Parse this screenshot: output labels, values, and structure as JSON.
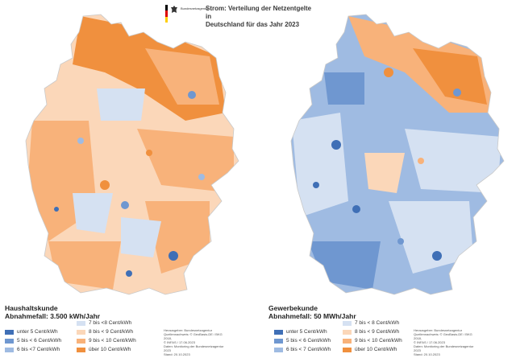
{
  "header": {
    "agency": "Bundesnetzagentur",
    "title_line1": "Strom: Verteilung der Netzentgelte in",
    "title_line2": "Deutschland für das Jahr 2023",
    "flag_colors": [
      "#000000",
      "#dd0000",
      "#ffce00"
    ]
  },
  "left_panel": {
    "title_line1": "Haushaltskunde",
    "title_line2": "Abnahmefall: 3.500 kWh/Jahr",
    "dominant_theme": "orange"
  },
  "right_panel": {
    "title_line1": "Gewerbekunde",
    "title_line2": "Abnahmefall: 50 MWh/Jahr",
    "dominant_theme": "blue"
  },
  "legend": {
    "items": [
      {
        "label": "unter 5 Cent/kWh",
        "color": "#3f6fb6"
      },
      {
        "label": "5 bis < 6 Cent/kWh",
        "color": "#6f97d0"
      },
      {
        "label": "6 bis <7 Cent/kWh",
        "color": "#9fbbe2"
      },
      {
        "label": "7 bis <8 Cent/kWh",
        "color": "#d5e1f2"
      },
      {
        "label": "8 bis < 9 Cent/kWh",
        "color": "#fbd7b9"
      },
      {
        "label": "9 bis < 10 Cent/kWh",
        "color": "#f8b27a"
      },
      {
        "label": "über 10 Cent/kWh",
        "color": "#f0903e"
      }
    ],
    "right_items": [
      {
        "label": "unter 5 Cent/kWh"
      },
      {
        "label": "5 bis < 6 Cent/kWh"
      },
      {
        "label": "6 bis < 7 Cent/kWh"
      },
      {
        "label": "7 bis < 8 Cent/kWh"
      },
      {
        "label": "8 bis < 9 Cent/kWh"
      },
      {
        "label": "9 bis < 10 Cent/kWh"
      },
      {
        "label": "über 10 Cent/kWh"
      }
    ]
  },
  "source_left": {
    "line1": "Herausgeber: Bundesnetzagentur",
    "line2": "Quellennachweis: © GeoBasis-DE / BKG 2018,",
    "line3": "© INFAS / 17.06.2023",
    "line4": "Daten: Monitoring der Bundesnetzagentur 2023",
    "line5": "Stand: 20.10.2023"
  },
  "source_right": {
    "line1": "Herausgeber: Bundesnetzagentur",
    "line2": "Quellennachweis: © GeoBasis-DE / BKG 2018,",
    "line3": "© INFAS / 17.06.2023",
    "line4": "Daten: Monitoring der Bundesnetzagentur 2023",
    "line5": "Stand: 20.10.2023"
  }
}
